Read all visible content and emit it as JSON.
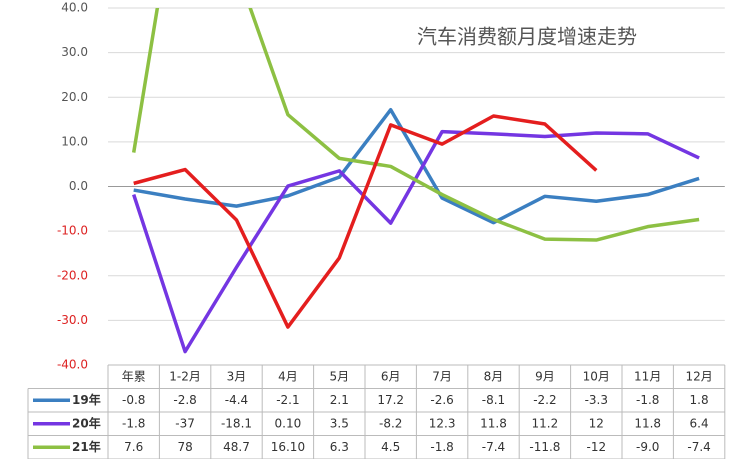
{
  "chart_data": {
    "type": "line",
    "title": "汽车消费额月度增速走势",
    "categories": [
      "年累",
      "1-2月",
      "3月",
      "4月",
      "5月",
      "6月",
      "7月",
      "8月",
      "9月",
      "10月",
      "11月",
      "12月"
    ],
    "ylim": [
      -40,
      40
    ],
    "yticks": [
      {
        "value": -40,
        "label": "-40.0"
      },
      {
        "value": -30,
        "label": "-30.0"
      },
      {
        "value": -20,
        "label": "-20.0"
      },
      {
        "value": -10,
        "label": "-10.0"
      },
      {
        "value": 0,
        "label": "0.0"
      },
      {
        "value": 10,
        "label": "10.0"
      },
      {
        "value": 20,
        "label": "20.0"
      },
      {
        "value": 30,
        "label": "30.0"
      },
      {
        "value": 40,
        "label": "40.0"
      }
    ],
    "grid": true,
    "series": [
      {
        "name": "19年",
        "color": "#3b7fc1",
        "values": [
          -0.8,
          -2.8,
          -4.4,
          -2.1,
          2.1,
          17.2,
          -2.6,
          -8.1,
          -2.2,
          -3.3,
          -1.8,
          1.8
        ],
        "value_labels": [
          "-0.8",
          "-2.8",
          "-4.4",
          "-2.1",
          "2.1",
          "17.2",
          "-2.6",
          "-8.1",
          "-2.2",
          "-3.3",
          "-1.8",
          "1.8"
        ]
      },
      {
        "name": "20年",
        "color": "#7436e2",
        "values": [
          -1.8,
          -37,
          -18.1,
          0.1,
          3.5,
          -8.2,
          12.3,
          11.8,
          11.2,
          12,
          11.8,
          6.4
        ],
        "value_labels": [
          "-1.8",
          "-37",
          "-18.1",
          "0.10",
          "3.5",
          "-8.2",
          "12.3",
          "11.8",
          "11.2",
          "12",
          "11.8",
          "6.4"
        ]
      },
      {
        "name": "21年",
        "color": "#8dc043",
        "values": [
          7.6,
          78,
          48.7,
          16.1,
          6.3,
          4.5,
          -1.8,
          -7.4,
          -11.8,
          -12,
          -9,
          -7.4
        ],
        "value_labels": [
          "7.6",
          "78",
          "48.7",
          "16.10",
          "6.3",
          "4.5",
          "-1.8",
          "-7.4",
          "-11.8",
          "-12",
          "-9.0",
          "-7.4"
        ]
      },
      {
        "color": "#e41e1e",
        "values": [
          0.7,
          3.8,
          -7.5,
          -31.5,
          -16,
          13.8,
          9.5,
          15.8,
          14,
          3.6,
          null,
          null
        ]
      }
    ]
  }
}
